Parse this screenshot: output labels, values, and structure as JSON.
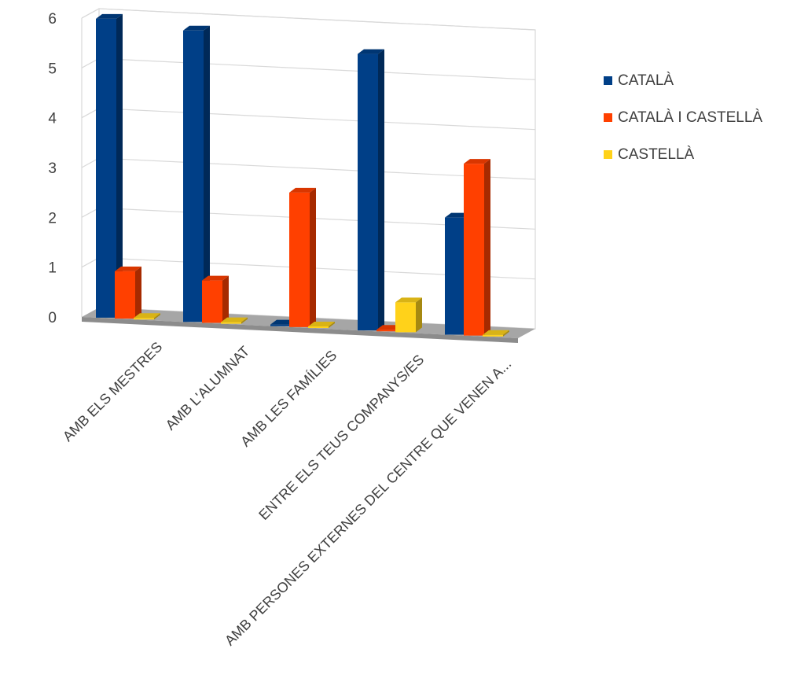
{
  "chart_data": {
    "type": "bar",
    "categories": [
      "AMB ELS MESTRES",
      "AMB L'ALUMNAT",
      "AMB LES FAMÍLIES",
      "ENTRE ELS TEUS COMPANYS/ES",
      "AMB PERSONES EXTERNES DEL CENTRE QUE VENEN A..."
    ],
    "series": [
      {
        "name": "CATALÀ",
        "color": "#003F87",
        "values": [
          6,
          5.85,
          0,
          5.55,
          2.35
        ]
      },
      {
        "name": "CATALÀ I CASTELLÀ",
        "color": "#FF4000",
        "values": [
          0.95,
          0.85,
          2.7,
          0,
          3.45
        ]
      },
      {
        "name": "CASTELLÀ",
        "color": "#FFD21A",
        "values": [
          0,
          0,
          0,
          0.6,
          0
        ]
      }
    ],
    "ylim": [
      0,
      6
    ],
    "yticks": [
      "0",
      "1",
      "2",
      "3",
      "4",
      "5",
      "6"
    ],
    "grid": true,
    "legend_position": "right",
    "title": "",
    "xlabel": "",
    "ylabel": "",
    "style": "3d-clustered-column"
  }
}
